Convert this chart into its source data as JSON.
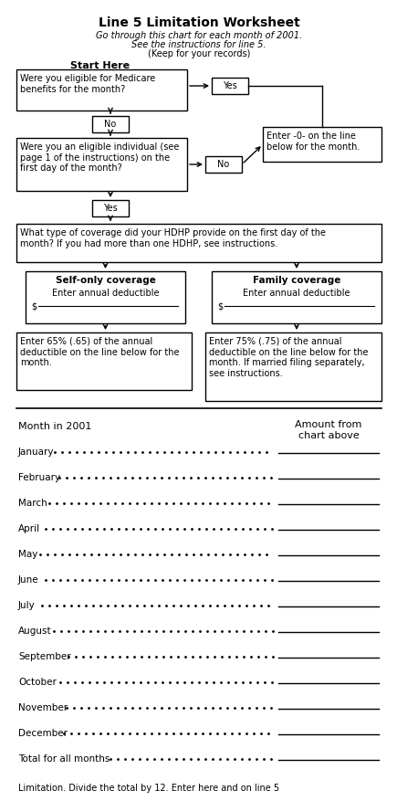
{
  "title": "Line 5 Limitation Worksheet",
  "subtitle1": "Go through this chart for each month of 2001.",
  "subtitle2": "See the instructions for line 5.",
  "subtitle3": "(Keep for your records)",
  "start_here": "Start Here",
  "box1_text": "Were you eligible for Medicare\nbenefits for the month?",
  "yes1": "Yes",
  "no1": "No",
  "box2_text": "Were you an eligible individual (see\npage 1 of the instructions) on the\nfirst day of the month?",
  "no2": "No",
  "enter0_text": "Enter -0- on the line\nbelow for the month.",
  "yes2": "Yes",
  "box3_text": "What type of coverage did your HDHP provide on the first day of the\nmonth? If you had more than one HDHP, see instructions.",
  "self_title": "Self-only coverage",
  "self_text": "Enter annual deductible",
  "self_dollar": "$",
  "fam_title": "Family coverage",
  "fam_text": "Enter annual deductible",
  "fam_dollar": "$",
  "enter65": "Enter 65% (.65) of the annual\ndeductible on the line below for the\nmonth.",
  "enter75": "Enter 75% (.75) of the annual\ndeductible on the line below for the\nmonth. If married filing separately,\nsee instructions.",
  "col1": "Month in 2001",
  "col2": "Amount from\nchart above",
  "months": [
    "January",
    "February",
    "March",
    "April",
    "May",
    "June",
    "July",
    "August",
    "September",
    "October",
    "November",
    "December",
    "Total for all months"
  ],
  "limitation": "Limitation. Divide the total by 12. Enter here and on line 5",
  "bg": "#ffffff"
}
